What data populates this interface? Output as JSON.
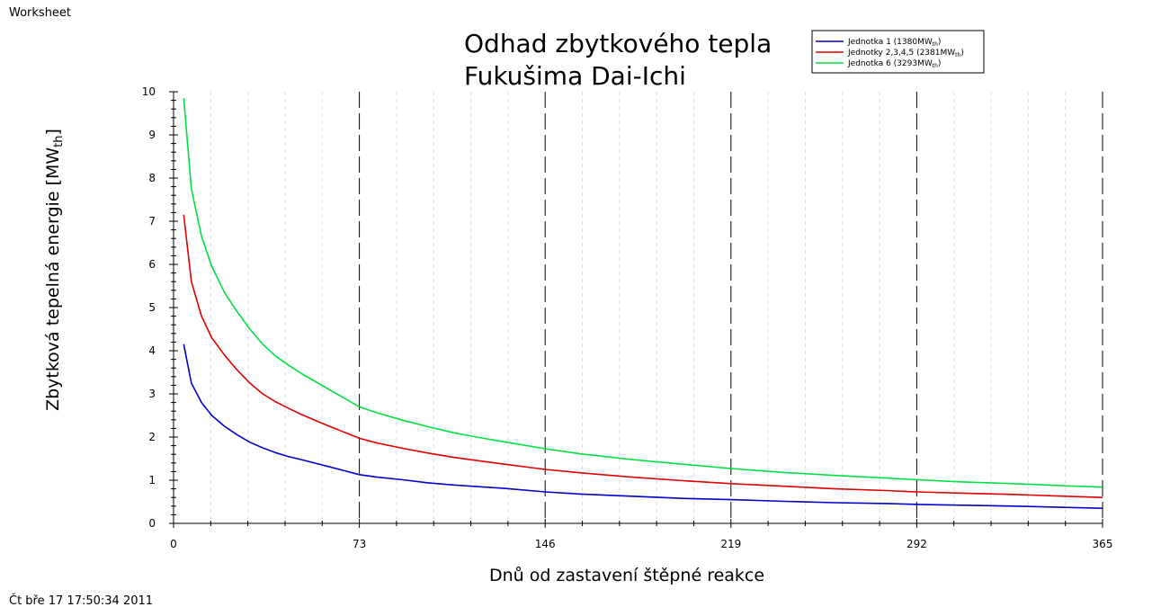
{
  "header": {
    "label": "Worksheet"
  },
  "footer": {
    "timestamp": "Čt bře 17 17:50:34 2011"
  },
  "chart_data": {
    "type": "line",
    "title_lines": [
      "Odhad zbytkového tepla",
      "Fukušima Dai-Ichi"
    ],
    "xlabel": "Dnů od zastavení štěpné reakce",
    "ylabel": {
      "text": "Zbytková tepelná energie [MW",
      "sub": "th",
      "end": "]"
    },
    "xlim": [
      0,
      365
    ],
    "ylim": [
      0,
      10
    ],
    "xticks": [
      0,
      73,
      146,
      219,
      292,
      365
    ],
    "yticks": [
      0,
      1,
      2,
      3,
      4,
      5,
      6,
      7,
      8,
      9,
      10
    ],
    "grid": {
      "major_x": "dashed",
      "minor_x": "dotted",
      "y": "none"
    },
    "legend_position": "top-right",
    "series": [
      {
        "name": "Jednotka 1 (1380MW",
        "name_sub": "th",
        "name_end": ")",
        "color": "#0000c8",
        "x": [
          4,
          7,
          11,
          15,
          20,
          25,
          30,
          35,
          40,
          45,
          50,
          60,
          73,
          80,
          90,
          100,
          110,
          120,
          130,
          146,
          160,
          180,
          200,
          219,
          240,
          260,
          280,
          292,
          310,
          330,
          350,
          365
        ],
        "y": [
          4.15,
          3.25,
          2.8,
          2.5,
          2.25,
          2.05,
          1.88,
          1.75,
          1.64,
          1.55,
          1.48,
          1.33,
          1.13,
          1.07,
          1.01,
          0.94,
          0.89,
          0.85,
          0.81,
          0.73,
          0.68,
          0.63,
          0.58,
          0.55,
          0.51,
          0.48,
          0.46,
          0.44,
          0.42,
          0.4,
          0.37,
          0.35
        ]
      },
      {
        "name": "Jednotky 2,3,4,5 (2381MW",
        "name_sub": "th",
        "name_end": ")",
        "color": "#e00000",
        "x": [
          4,
          7,
          11,
          15,
          20,
          25,
          30,
          35,
          40,
          45,
          50,
          60,
          73,
          80,
          90,
          100,
          110,
          120,
          130,
          146,
          160,
          180,
          200,
          219,
          240,
          260,
          280,
          292,
          310,
          330,
          350,
          365
        ],
        "y": [
          7.15,
          5.6,
          4.8,
          4.3,
          3.9,
          3.55,
          3.25,
          3.0,
          2.82,
          2.67,
          2.53,
          2.28,
          1.97,
          1.86,
          1.74,
          1.63,
          1.53,
          1.45,
          1.37,
          1.25,
          1.17,
          1.07,
          0.99,
          0.92,
          0.86,
          0.8,
          0.76,
          0.73,
          0.7,
          0.67,
          0.63,
          0.6
        ]
      },
      {
        "name": "Jednotka 6 (3293MW",
        "name_sub": "th",
        "name_end": ")",
        "color": "#00e040",
        "x": [
          4,
          7,
          11,
          15,
          20,
          25,
          30,
          35,
          40,
          45,
          50,
          60,
          73,
          80,
          90,
          100,
          110,
          120,
          130,
          146,
          160,
          180,
          200,
          219,
          240,
          260,
          280,
          292,
          310,
          330,
          350,
          365
        ],
        "y": [
          9.85,
          7.75,
          6.65,
          5.95,
          5.35,
          4.9,
          4.5,
          4.15,
          3.88,
          3.67,
          3.48,
          3.14,
          2.7,
          2.56,
          2.39,
          2.24,
          2.1,
          1.99,
          1.89,
          1.73,
          1.61,
          1.48,
          1.37,
          1.27,
          1.18,
          1.11,
          1.05,
          1.01,
          0.96,
          0.92,
          0.87,
          0.84
        ]
      }
    ]
  }
}
